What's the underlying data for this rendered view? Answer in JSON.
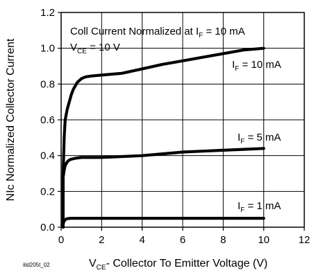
{
  "chart_data": {
    "type": "line",
    "title": "",
    "xlabel": {
      "main": "V",
      "sub": "CE",
      "rest": "- Collector To Emitter Voltage (V)"
    },
    "ylabel": "NIc Normalized Collector Current",
    "xlim": [
      0,
      12
    ],
    "ylim": [
      0,
      1.2
    ],
    "x_ticks": [
      0,
      2,
      4,
      6,
      8,
      10,
      12
    ],
    "y_ticks": [
      0.0,
      0.2,
      0.4,
      0.6,
      0.8,
      1.0,
      1.2
    ],
    "x_tick_labels": [
      "0",
      "2",
      "4",
      "6",
      "8",
      "10",
      "12"
    ],
    "y_tick_labels": [
      "0.0",
      "0.2",
      "0.4",
      "0.6",
      "0.8",
      "1.0",
      "1.2"
    ],
    "grid": true,
    "figure_id": "iild205t_02",
    "annotations": {
      "header_main": "Coll Current Normalized at I",
      "header_sub": "F",
      "header_rest": " = 10 mA",
      "vce_main": "V",
      "vce_sub": "CE",
      "vce_rest": " = 10 V"
    },
    "series": [
      {
        "name": "I_F = 10 mA",
        "label": {
          "main": "I",
          "sub": "F",
          "rest": " = 10 mA"
        },
        "x": [
          0.1,
          0.15,
          0.2,
          0.3,
          0.4,
          0.5,
          0.6,
          0.8,
          1.0,
          1.2,
          1.5,
          2.0,
          3.0,
          4.0,
          5.0,
          6.0,
          7.0,
          8.0,
          9.0,
          10.0
        ],
        "y": [
          0.3,
          0.5,
          0.6,
          0.66,
          0.7,
          0.74,
          0.77,
          0.81,
          0.83,
          0.84,
          0.845,
          0.85,
          0.86,
          0.885,
          0.91,
          0.93,
          0.95,
          0.97,
          0.99,
          1.0
        ]
      },
      {
        "name": "I_F = 5 mA",
        "label": {
          "main": "I",
          "sub": "F",
          "rest": " = 5 mA"
        },
        "x": [
          0.1,
          0.15,
          0.2,
          0.3,
          0.4,
          0.5,
          0.7,
          1.0,
          1.5,
          2.0,
          3.0,
          4.0,
          5.0,
          6.0,
          7.0,
          8.0,
          9.0,
          10.0
        ],
        "y": [
          0.28,
          0.32,
          0.345,
          0.365,
          0.375,
          0.38,
          0.385,
          0.39,
          0.39,
          0.39,
          0.395,
          0.4,
          0.41,
          0.42,
          0.425,
          0.43,
          0.435,
          0.44
        ]
      },
      {
        "name": "I_F = 1 mA",
        "label": {
          "main": "I",
          "sub": "F",
          "rest": " = 1 mA"
        },
        "x": [
          0.1,
          0.15,
          0.2,
          0.3,
          0.5,
          1.0,
          2.0,
          4.0,
          6.0,
          8.0,
          10.0
        ],
        "y": [
          0.02,
          0.035,
          0.042,
          0.048,
          0.05,
          0.05,
          0.05,
          0.05,
          0.05,
          0.05,
          0.05
        ]
      }
    ]
  }
}
